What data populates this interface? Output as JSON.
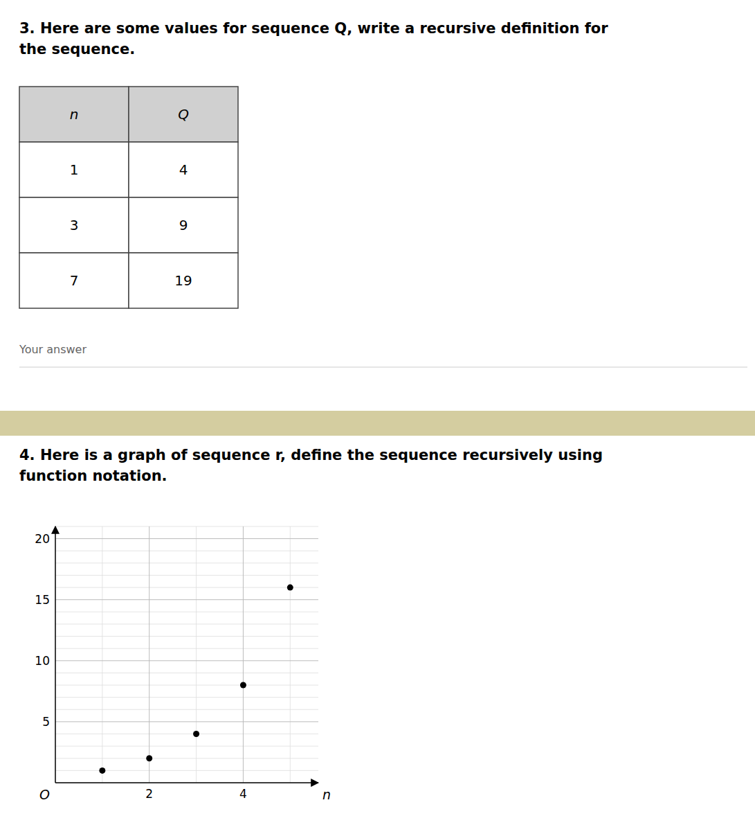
{
  "chart_data": [
    {
      "type": "table",
      "title": [
        "3. Here are some values for sequence Q, write a recursive definition for",
        "the sequence."
      ],
      "columns": [
        "n",
        "Q"
      ],
      "rows": [
        [
          1,
          4
        ],
        [
          3,
          9
        ],
        [
          7,
          19
        ]
      ],
      "annotations": [
        "Your answer"
      ]
    },
    {
      "type": "scatter",
      "title": [
        "4. Here is a graph of sequence r, define the sequence recursively using",
        "function notation."
      ],
      "x": [
        1,
        2,
        3,
        4,
        5
      ],
      "values": [
        1,
        2,
        4,
        8,
        16
      ],
      "color": "#000000",
      "xlabel": "n",
      "annotations": [
        "O"
      ],
      "xlim": [
        0,
        5.6
      ],
      "ylim": [
        0,
        21
      ],
      "xticks": [
        2,
        4
      ],
      "yticks": [
        5,
        10,
        15,
        20
      ],
      "grid": true
    }
  ]
}
